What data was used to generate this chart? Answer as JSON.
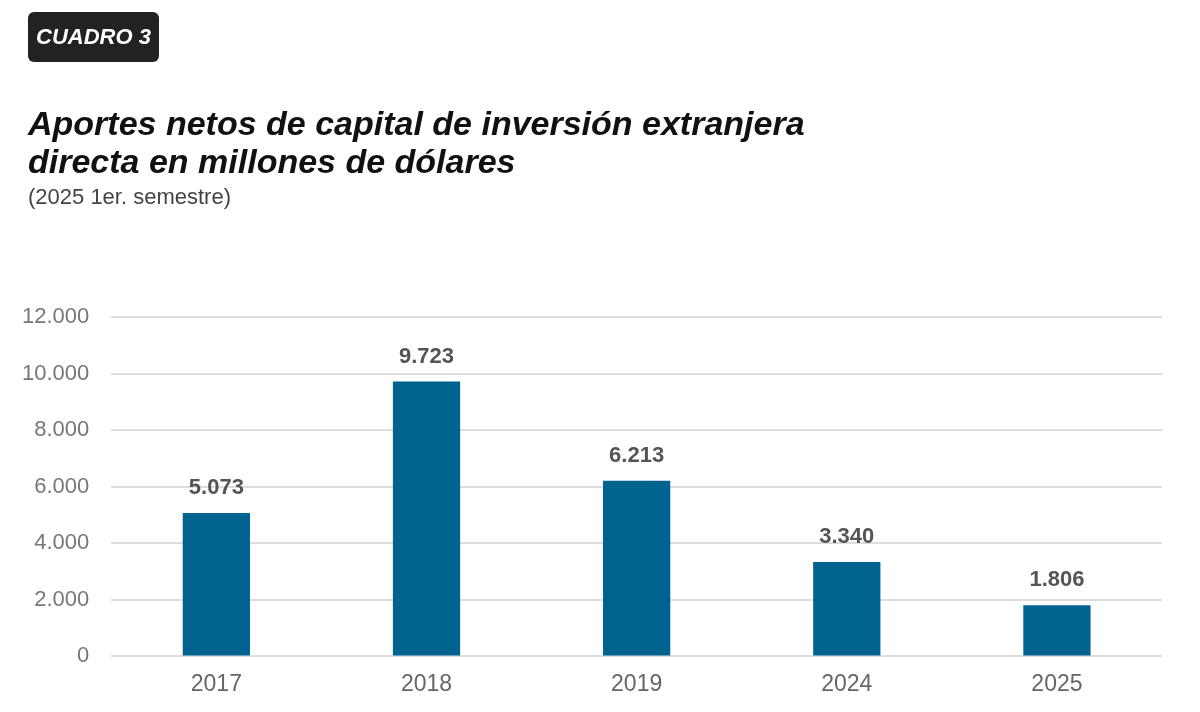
{
  "chart_data": {
    "type": "bar",
    "title": "Aportes netos de capital de inversión extranjera directa en millones de dólares",
    "subtitle": "(2025 1er. semestre)",
    "annotations": [
      "CUADRO 3"
    ],
    "categories": [
      "2017",
      "2018",
      "2019",
      "2024",
      "2025"
    ],
    "values": [
      5073,
      9723,
      6213,
      3340,
      1806
    ],
    "value_labels": [
      "5.073",
      "9.723",
      "6.213",
      "3.340",
      "1.806"
    ],
    "color": "#00628f",
    "ylim": [
      0,
      12000
    ],
    "yticks": [
      {
        "value": 0,
        "label": "0"
      },
      {
        "value": 2000,
        "label": "2.000"
      },
      {
        "value": 4000,
        "label": "4.000"
      },
      {
        "value": 6000,
        "label": "6.000"
      },
      {
        "value": 8000,
        "label": "8.000"
      },
      {
        "value": 10000,
        "label": "10.000"
      },
      {
        "value": 12000,
        "label": "12.000"
      }
    ],
    "grid": "y",
    "legend": false
  }
}
